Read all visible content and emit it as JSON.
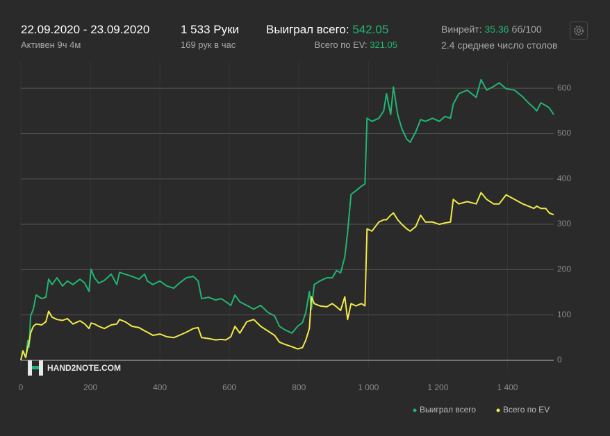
{
  "header": {
    "date_range": "22.09.2020 - 23.09.2020",
    "active": "Активен 9ч 4м",
    "hands": "1 533 Руки",
    "hands_per_hour": "169 рук в час",
    "won_label": "Выиграл всего:",
    "won_value": "542.05",
    "ev_label": "Всего по EV:",
    "ev_value": "321.05",
    "winrate_label": "Винрейт:",
    "winrate_value": "35.36",
    "winrate_unit": "бб/100",
    "tables": "2.4 среднее число столов"
  },
  "chart_data": {
    "type": "line",
    "watermark": "HAND2NOTE.COM",
    "x": [
      0,
      6,
      14,
      20,
      24,
      28,
      36,
      44,
      60,
      72,
      80,
      90,
      104,
      120,
      134,
      150,
      170,
      184,
      196,
      202,
      212,
      224,
      240,
      260,
      276,
      284,
      300,
      320,
      340,
      356,
      364,
      380,
      400,
      420,
      440,
      456,
      476,
      496,
      510,
      520,
      540,
      560,
      576,
      590,
      604,
      616,
      630,
      650,
      670,
      690,
      710,
      730,
      744,
      760,
      780,
      796,
      810,
      820,
      830,
      836,
      844,
      860,
      880,
      896,
      908,
      920,
      932,
      940,
      950,
      964,
      980,
      990,
      996,
      1010,
      1030,
      1044,
      1052,
      1064,
      1072,
      1084,
      1096,
      1110,
      1120,
      1136,
      1150,
      1164,
      1184,
      1204,
      1220,
      1236,
      1244,
      1260,
      1284,
      1310,
      1324,
      1340,
      1360,
      1376,
      1396,
      1420,
      1444,
      1460,
      1476,
      1484,
      1496,
      1510,
      1520,
      1533
    ],
    "series": [
      {
        "name": "Выиграл всего",
        "color": "#22b573",
        "values": [
          0,
          21,
          6,
          44,
          29,
          98,
          113,
          144,
          136,
          139,
          179,
          167,
          182,
          164,
          175,
          167,
          179,
          170,
          152,
          201,
          182,
          170,
          176,
          190,
          167,
          194,
          190,
          185,
          179,
          190,
          175,
          167,
          175,
          164,
          159,
          170,
          182,
          185,
          175,
          136,
          139,
          133,
          136,
          129,
          121,
          144,
          129,
          121,
          113,
          121,
          106,
          98,
          75,
          67,
          60,
          75,
          83,
          106,
          152,
          113,
          167,
          175,
          182,
          182,
          198,
          193,
          228,
          282,
          366,
          374,
          384,
          389,
          534,
          527,
          534,
          550,
          588,
          542,
          603,
          542,
          511,
          488,
          481,
          504,
          531,
          527,
          534,
          527,
          538,
          534,
          565,
          588,
          596,
          580,
          619,
          596,
          604,
          612,
          599,
          596,
          581,
          568,
          557,
          550,
          568,
          562,
          557,
          542.05
        ]
      },
      {
        "name": "Всего по EV",
        "color": "#f2ea4a",
        "values": [
          0,
          21,
          6,
          30,
          40,
          60,
          75,
          80,
          78,
          85,
          108,
          95,
          90,
          88,
          92,
          80,
          87,
          80,
          70,
          82,
          80,
          75,
          70,
          78,
          80,
          90,
          85,
          75,
          72,
          65,
          62,
          55,
          58,
          52,
          50,
          55,
          62,
          70,
          72,
          50,
          48,
          45,
          46,
          45,
          52,
          75,
          60,
          85,
          90,
          75,
          65,
          55,
          40,
          35,
          30,
          25,
          28,
          45,
          70,
          140,
          125,
          120,
          118,
          125,
          118,
          110,
          140,
          90,
          125,
          120,
          125,
          120,
          290,
          285,
          305,
          310,
          310,
          320,
          325,
          310,
          300,
          290,
          285,
          295,
          320,
          305,
          305,
          300,
          303,
          305,
          355,
          345,
          350,
          345,
          370,
          355,
          345,
          345,
          365,
          355,
          345,
          340,
          335,
          340,
          335,
          335,
          325,
          321.05
        ]
      }
    ],
    "xlim": [
      0,
      1533
    ],
    "ylim": [
      -20,
      660
    ],
    "xticks": [
      0,
      200,
      400,
      600,
      800,
      {
        "value": 1000,
        "label": "1 000"
      },
      {
        "value": 1200,
        "label": "1 200"
      },
      {
        "value": 1400,
        "label": "1 400"
      }
    ],
    "yticks": [
      0,
      100,
      200,
      300,
      400,
      500,
      600
    ],
    "grid": true
  }
}
